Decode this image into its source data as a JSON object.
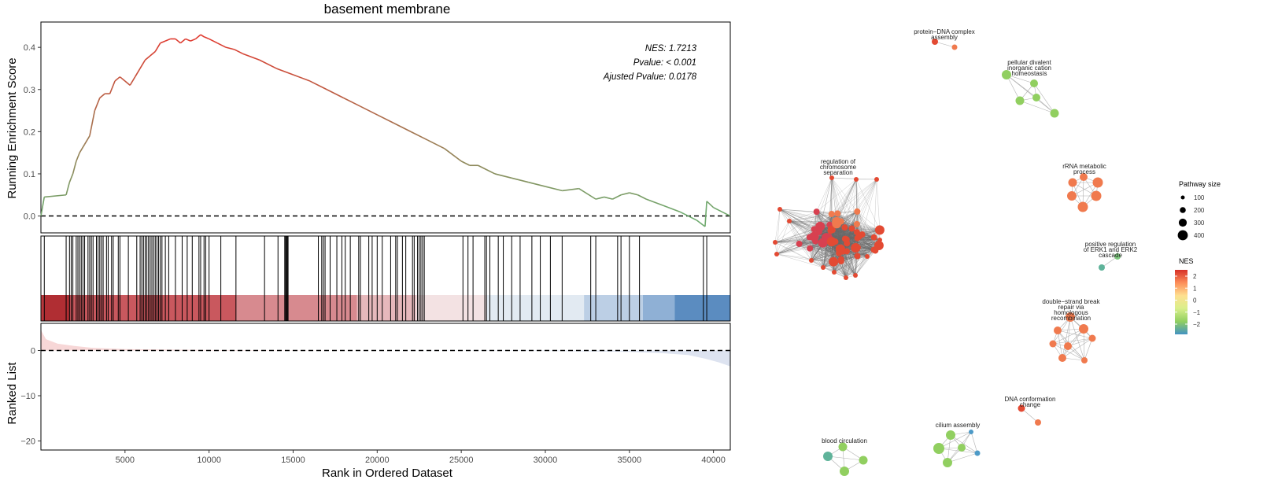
{
  "chart_data": [
    {
      "type": "line",
      "title": "basement membrane",
      "xlabel": "Rank in Ordered Dataset",
      "ylabel": "Running Enrichment Score",
      "xlim": [
        0,
        41000
      ],
      "ylim": [
        -0.04,
        0.46
      ],
      "x_ticks": [
        5000,
        10000,
        15000,
        20000,
        25000,
        30000,
        35000,
        40000
      ],
      "y_ticks": [
        0.0,
        0.1,
        0.2,
        0.3,
        0.4
      ],
      "y_tick_labels": [
        "0.0",
        "0.1",
        "0.2",
        "0.3",
        "0.4"
      ],
      "stats": [
        "NES: 1.7213",
        "Pvalue: < 0.001",
        "Ajusted Pvalue: 0.0178"
      ],
      "x": [
        0,
        200,
        1500,
        1700,
        1900,
        2100,
        2300,
        2600,
        2900,
        3200,
        3500,
        3800,
        4100,
        4400,
        4700,
        5000,
        5300,
        5600,
        5900,
        6200,
        6500,
        6800,
        7100,
        7400,
        7700,
        8000,
        8300,
        8600,
        8900,
        9200,
        9500,
        9700,
        10000,
        10500,
        11000,
        11500,
        12000,
        13000,
        14000,
        15000,
        16000,
        17000,
        18000,
        19000,
        20000,
        21000,
        22000,
        23000,
        24000,
        25000,
        25500,
        26000,
        26500,
        27000,
        28000,
        29000,
        30000,
        31000,
        32000,
        33000,
        33500,
        34000,
        34500,
        35000,
        35500,
        36000,
        37000,
        38000,
        39000,
        39500,
        39600,
        40000,
        41000
      ],
      "y": [
        0.0,
        0.045,
        0.05,
        0.08,
        0.1,
        0.13,
        0.15,
        0.17,
        0.19,
        0.25,
        0.28,
        0.29,
        0.29,
        0.32,
        0.33,
        0.32,
        0.31,
        0.33,
        0.35,
        0.37,
        0.38,
        0.39,
        0.41,
        0.415,
        0.42,
        0.42,
        0.41,
        0.42,
        0.415,
        0.42,
        0.43,
        0.425,
        0.42,
        0.41,
        0.4,
        0.395,
        0.385,
        0.37,
        0.35,
        0.335,
        0.32,
        0.3,
        0.28,
        0.26,
        0.24,
        0.22,
        0.2,
        0.18,
        0.16,
        0.13,
        0.12,
        0.12,
        0.11,
        0.1,
        0.09,
        0.08,
        0.07,
        0.06,
        0.065,
        0.04,
        0.045,
        0.04,
        0.05,
        0.055,
        0.05,
        0.04,
        0.025,
        0.01,
        -0.01,
        -0.025,
        0.035,
        0.02,
        0.0
      ],
      "baseline": 0
    },
    {
      "type": "line",
      "xlabel": "Rank in Ordered Dataset",
      "xlim": [
        0,
        41000
      ],
      "hit_positions": [
        200,
        1500,
        1700,
        1800,
        1900,
        2100,
        2200,
        2300,
        2400,
        2500,
        2600,
        2800,
        2900,
        3000,
        3100,
        3300,
        3400,
        3500,
        3600,
        3700,
        3900,
        4000,
        4200,
        4300,
        4600,
        4700,
        5200,
        5700,
        5900,
        6000,
        6100,
        6200,
        6300,
        6400,
        6500,
        6600,
        6700,
        6800,
        6900,
        7000,
        7100,
        7200,
        7400,
        7600,
        8000,
        8400,
        8700,
        9000,
        9400,
        9500,
        9700,
        9800,
        10000,
        10700,
        11600,
        13300,
        14100,
        14500,
        14550,
        14600,
        14650,
        14700,
        16500,
        16700,
        16800,
        16900,
        17200,
        17600,
        17900,
        18100,
        18400,
        18900,
        19000,
        19500,
        19700,
        20000,
        20300,
        20800,
        21100,
        21200,
        21500,
        21700,
        22100,
        22200,
        22400,
        22500,
        22600,
        22700,
        22800,
        25100,
        25400,
        25700,
        26400,
        26500,
        26700,
        27200,
        27500,
        28000,
        28500,
        29200,
        29700,
        30300,
        31000,
        32700,
        33000,
        34300,
        34500,
        35000,
        35600,
        39400,
        39600
      ]
    },
    {
      "type": "area",
      "ylabel": "Ranked List",
      "xlim": [
        0,
        41000
      ],
      "ylim": [
        -22,
        6
      ],
      "y_ticks": [
        0,
        -10,
        -20
      ],
      "y_tick_labels": [
        "0",
        "−10",
        "−20"
      ],
      "x": [
        0,
        300,
        1000,
        2000,
        3000,
        5000,
        10000,
        20000,
        30000,
        35000,
        37000,
        38500,
        39500,
        40300,
        41000
      ],
      "y": [
        4.5,
        2.5,
        1.5,
        1.0,
        0.6,
        0.3,
        0.1,
        0,
        -0.1,
        -0.3,
        -0.6,
        -1.0,
        -1.8,
        -2.6,
        -3.5
      ]
    },
    {
      "type": "scatter",
      "clusters": [
        {
          "label_lines": [
            "protein−DNA complex",
            "assembly"
          ]
        },
        {
          "label_lines": [
            "pellular divalent",
            "inorganic cation",
            "homeostasis"
          ]
        },
        {
          "label_lines": [
            "regulation of",
            "chromosome",
            "separation"
          ]
        },
        {
          "label_lines": [
            "rRNA metabolic",
            "process"
          ]
        },
        {
          "label_lines": [
            "positive regulation",
            "of ERK1 and ERK2",
            "cascade"
          ]
        },
        {
          "label_lines": [
            "double−strand break",
            "repair via",
            "homologous",
            "recombination"
          ]
        },
        {
          "label_lines": [
            "DNA conformation",
            "change"
          ]
        },
        {
          "label_lines": [
            "cilium assembly"
          ]
        },
        {
          "label_lines": [
            "blood circulation"
          ]
        }
      ],
      "legend_size": {
        "title": "Pathway size",
        "values": [
          100,
          200,
          300,
          400
        ],
        "labels": [
          "100",
          "200",
          "300",
          "400"
        ]
      },
      "legend_color": {
        "title": "NES",
        "ticks": [
          2,
          1,
          0,
          -1,
          -2
        ],
        "tick_labels": [
          "2",
          "1",
          "0",
          "−1",
          "−2"
        ],
        "colors": [
          "#d73027",
          "#fc8d59",
          "#fee090",
          "#d9ef8b",
          "#91cf60",
          "#4393c3"
        ]
      }
    }
  ]
}
